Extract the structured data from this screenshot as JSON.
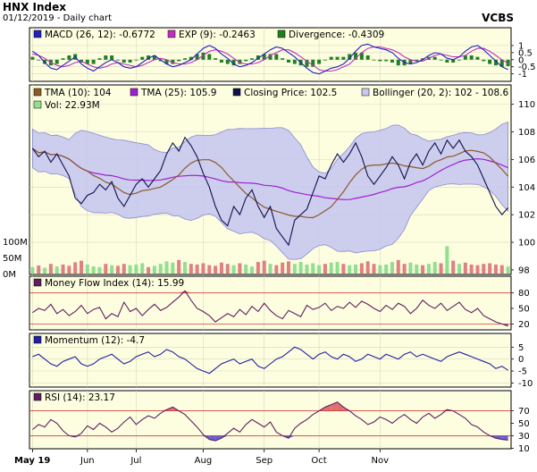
{
  "header": {
    "title": "HNX Index",
    "date_line": "01/12/2019 - Daily chart",
    "brand": "VCBS"
  },
  "colors": {
    "panel_bg": "#fdfde0",
    "macd": "#2020c0",
    "exp": "#c030c0",
    "divergence": "#208020",
    "tma10": "#8b5a2b",
    "tma25": "#a020d0",
    "close": "#101050",
    "bollinger_fill": "#c8c8f0",
    "bollinger_line": "#8080d0",
    "vol_up": "#90e090",
    "vol_down": "#e08080",
    "mfi": "#602060",
    "momentum": "#2020a0",
    "rsi": "#602060",
    "overbought_fill": "#e07070",
    "oversold_fill": "#6060e0",
    "threshold_line": "#d04040"
  },
  "chart_data": [
    {
      "type": "line",
      "panel": "macd",
      "legend": {
        "macd": "MACD (26, 12): -0.6772",
        "exp": "EXP (9): -0.2463",
        "divergence": "Divergence: -0.4309"
      },
      "ylim": [
        -1.4,
        1.5
      ],
      "yticks": [
        1,
        0.5,
        0,
        -0.5,
        -1
      ],
      "series": [
        {
          "name": "MACD (26, 12)",
          "values": [
            0.6,
            0.3,
            -0.2,
            -0.6,
            -0.7,
            -0.4,
            -0.1,
            0.2,
            -0.3,
            -0.6,
            -0.8,
            -0.5,
            -0.2,
            0.0,
            -0.2,
            -0.5,
            -0.6,
            -0.5,
            -0.2,
            0.1,
            0.3,
            0.0,
            -0.3,
            -0.5,
            -0.4,
            -0.2,
            0.0,
            0.4,
            0.8,
            1.0,
            0.8,
            0.4,
            0.1,
            -0.3,
            -0.5,
            -0.4,
            -0.2,
            0.1,
            0.4,
            0.7,
            0.9,
            0.8,
            0.5,
            0.2,
            -0.2,
            -0.6,
            -0.9,
            -1.0,
            -0.8,
            -0.6,
            -0.5,
            -0.3,
            0.1,
            0.6,
            1.0,
            1.1,
            0.9,
            0.8,
            0.7,
            0.5,
            0.1,
            -0.2,
            -0.3,
            -0.2,
            0.0,
            0.3,
            0.5,
            0.4,
            0.1,
            0.0,
            0.2,
            0.6,
            0.9,
            1.0,
            0.7,
            0.3,
            -0.1,
            -0.5,
            -0.7
          ]
        },
        {
          "name": "EXP (9)",
          "values": [
            0.4,
            0.3,
            0.1,
            -0.2,
            -0.4,
            -0.5,
            -0.4,
            -0.2,
            -0.1,
            -0.3,
            -0.5,
            -0.6,
            -0.5,
            -0.3,
            -0.2,
            -0.3,
            -0.4,
            -0.5,
            -0.4,
            -0.2,
            0.0,
            0.1,
            0.0,
            -0.2,
            -0.3,
            -0.3,
            -0.2,
            0.0,
            0.3,
            0.6,
            0.7,
            0.6,
            0.4,
            0.1,
            -0.2,
            -0.3,
            -0.3,
            -0.2,
            0.0,
            0.3,
            0.5,
            0.7,
            0.7,
            0.5,
            0.2,
            -0.1,
            -0.4,
            -0.7,
            -0.8,
            -0.8,
            -0.7,
            -0.5,
            -0.3,
            0.1,
            0.5,
            0.8,
            0.9,
            0.9,
            0.8,
            0.7,
            0.5,
            0.2,
            0.0,
            -0.1,
            -0.1,
            0.1,
            0.3,
            0.4,
            0.3,
            0.2,
            0.2,
            0.3,
            0.6,
            0.8,
            0.8,
            0.6,
            0.3,
            0.0,
            -0.25
          ]
        }
      ]
    },
    {
      "type": "line",
      "panel": "price",
      "legend": {
        "tma10": "TMA (10): 104",
        "tma25": "TMA (25): 105.9",
        "close": "Closing Price: 102.5",
        "bollinger": "Bollinger (20, 2): 102 - 108.6",
        "vol": "Vol: 22.93M"
      },
      "ylim": [
        97.8,
        111.4
      ],
      "yticks": [
        110,
        108,
        106,
        104,
        102,
        100,
        98
      ],
      "vol_ticks": [
        "100M",
        "50M",
        "0M"
      ],
      "vol_max": 200,
      "close": [
        106.8,
        106.2,
        106.6,
        105.8,
        106.4,
        105.6,
        104.8,
        103.2,
        102.8,
        103.4,
        103.6,
        104.2,
        103.8,
        104.4,
        103.2,
        102.6,
        103.4,
        104.2,
        104.6,
        104.0,
        104.6,
        105.2,
        106.4,
        107.2,
        106.6,
        107.6,
        107.0,
        106.2,
        105.0,
        104.0,
        102.6,
        101.6,
        101.2,
        102.6,
        102.0,
        103.2,
        103.8,
        102.6,
        101.8,
        102.6,
        101.0,
        100.4,
        99.8,
        101.6,
        102.0,
        102.4,
        103.6,
        104.8,
        104.6,
        105.6,
        106.4,
        105.8,
        106.4,
        107.2,
        106.2,
        104.8,
        104.2,
        104.8,
        105.4,
        106.2,
        105.6,
        104.6,
        105.8,
        106.4,
        105.6,
        106.6,
        107.2,
        106.4,
        107.4,
        106.8,
        107.4,
        106.6,
        106.2,
        105.6,
        104.6,
        103.6,
        102.6,
        102.0,
        102.5
      ]
    },
    {
      "type": "line",
      "panel": "mfi",
      "legend": "Money Flow Index (14): 15.99",
      "ylim": [
        12,
        95
      ],
      "yticks": [
        80,
        50,
        20
      ],
      "levels": [
        80,
        20
      ],
      "series": [
        {
          "name": "Money Flow Index (14)",
          "values": [
            42,
            50,
            46,
            58,
            40,
            48,
            36,
            44,
            56,
            40,
            48,
            52,
            30,
            40,
            34,
            62,
            44,
            50,
            36,
            48,
            58,
            46,
            52,
            62,
            72,
            84,
            66,
            50,
            44,
            36,
            24,
            32,
            40,
            34,
            48,
            38,
            54,
            44,
            60,
            46,
            36,
            30,
            46,
            40,
            34,
            56,
            48,
            52,
            60,
            46,
            54,
            50,
            62,
            52,
            64,
            58,
            50,
            44,
            56,
            48,
            60,
            54,
            40,
            50,
            66,
            56,
            50,
            60,
            46,
            54,
            62,
            48,
            42,
            50,
            36,
            30,
            24,
            20,
            16
          ]
        }
      ]
    },
    {
      "type": "line",
      "panel": "momentum",
      "legend": "Momentum (12): -4.7",
      "ylim": [
        -11,
        7
      ],
      "yticks": [
        5,
        0,
        -5,
        -10
      ],
      "series": [
        {
          "name": "Momentum (12)",
          "values": [
            1,
            2,
            0,
            -2,
            -3,
            -1,
            0,
            1,
            -2,
            -3,
            -2,
            0,
            1,
            2,
            0,
            -2,
            -1,
            1,
            2,
            3,
            1,
            2,
            4,
            3,
            1,
            0,
            -2,
            -4,
            -5,
            -6,
            -4,
            -2,
            -1,
            0,
            -2,
            -1,
            0,
            -3,
            -4,
            -2,
            0,
            1,
            3,
            5,
            4,
            2,
            0,
            2,
            3,
            1,
            0,
            2,
            1,
            -1,
            0,
            2,
            1,
            0,
            2,
            1,
            0,
            2,
            3,
            1,
            2,
            1,
            0,
            -1,
            1,
            2,
            3,
            2,
            1,
            0,
            -1,
            -2,
            -4,
            -3,
            -4.7
          ]
        }
      ]
    },
    {
      "type": "line",
      "panel": "rsi",
      "legend": "RSI (14): 23.17",
      "ylim": [
        12,
        88
      ],
      "yticks": [
        70,
        50,
        30,
        10
      ],
      "levels": [
        70,
        30
      ],
      "series": [
        {
          "name": "RSI (14)",
          "values": [
            40,
            48,
            44,
            56,
            50,
            38,
            30,
            28,
            34,
            46,
            40,
            50,
            44,
            36,
            42,
            52,
            60,
            48,
            56,
            62,
            58,
            66,
            72,
            76,
            70,
            64,
            54,
            44,
            32,
            24,
            22,
            26,
            34,
            42,
            36,
            48,
            56,
            50,
            44,
            52,
            36,
            30,
            26,
            42,
            50,
            56,
            64,
            70,
            76,
            80,
            84,
            76,
            70,
            62,
            56,
            48,
            52,
            60,
            56,
            50,
            58,
            64,
            56,
            50,
            60,
            66,
            58,
            64,
            72,
            70,
            64,
            58,
            48,
            44,
            36,
            30,
            26,
            24,
            23
          ]
        }
      ]
    }
  ],
  "x_axis": {
    "labels": [
      {
        "text": "May 19",
        "index": 0
      },
      {
        "text": "Jun",
        "index": 9
      },
      {
        "text": "Jul",
        "index": 17
      },
      {
        "text": "Aug",
        "index": 28
      },
      {
        "text": "Sep",
        "index": 38
      },
      {
        "text": "Oct",
        "index": 47
      },
      {
        "text": "Nov",
        "index": 57
      }
    ],
    "n": 79
  },
  "volume": [
    20,
    25,
    18,
    30,
    22,
    28,
    24,
    35,
    40,
    28,
    22,
    20,
    30,
    26,
    24,
    30,
    26,
    28,
    32,
    20,
    24,
    30,
    38,
    34,
    42,
    36,
    30,
    28,
    32,
    26,
    24,
    34,
    30,
    26,
    32,
    28,
    22,
    36,
    40,
    30,
    26,
    34,
    38,
    30,
    36,
    28,
    32,
    26,
    30,
    34,
    36,
    30,
    26,
    28,
    32,
    38,
    30,
    26,
    28,
    36,
    42,
    30,
    34,
    28,
    26,
    30,
    36,
    32,
    85,
    40,
    30,
    34,
    28,
    26,
    30,
    32,
    28,
    26,
    22
  ]
}
